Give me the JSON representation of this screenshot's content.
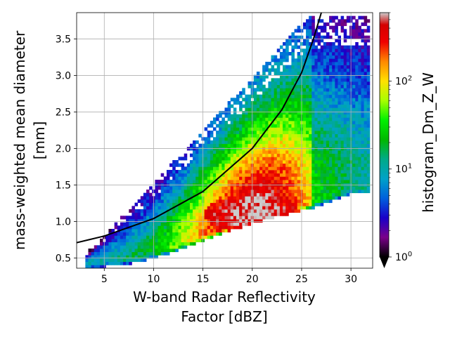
{
  "chart_data": {
    "type": "heatmap",
    "title": "",
    "xlabel": [
      "W-band Radar Reflectivity",
      "Factor [dBZ]"
    ],
    "ylabel": [
      "mass-weighted mean diameter",
      "[mm]"
    ],
    "xlim": [
      2.2,
      32.2
    ],
    "ylim": [
      0.36,
      3.86
    ],
    "x_ticks": [
      5,
      10,
      15,
      20,
      25,
      30
    ],
    "y_ticks": [
      0.5,
      1.0,
      1.5,
      2.0,
      2.5,
      3.0,
      3.5
    ],
    "x_tick_labels": [
      "5",
      "10",
      "15",
      "20",
      "25",
      "30"
    ],
    "y_tick_labels": [
      "0.5",
      "1.0",
      "1.5",
      "2.0",
      "2.5",
      "3.0",
      "3.5"
    ],
    "grid": true,
    "colorbar": {
      "label": "histogram_Dm_Z_W",
      "scale": "log",
      "range": [
        1,
        600
      ],
      "tick_labels": [
        {
          "base": "10",
          "exp": "0",
          "value": 1
        },
        {
          "base": "10",
          "exp": "1",
          "value": 10
        },
        {
          "base": "10",
          "exp": "2",
          "value": 100
        }
      ],
      "extend": "min",
      "colormap": "nipy_spectral"
    },
    "density_model": {
      "ridge": [
        [
          3,
          0.42
        ],
        [
          8,
          0.5
        ],
        [
          12,
          0.65
        ],
        [
          15,
          0.8
        ],
        [
          18,
          0.95
        ],
        [
          20,
          1.05
        ],
        [
          23,
          1.15
        ],
        [
          26,
          1.25
        ],
        [
          30,
          1.45
        ]
      ],
      "peak": {
        "x": 20,
        "y": 1.1,
        "count": 600
      }
    },
    "fit_curve": {
      "label": "",
      "color": "#000000",
      "points": [
        [
          2.2,
          0.71
        ],
        [
          5,
          0.8
        ],
        [
          10,
          1.04
        ],
        [
          15,
          1.41
        ],
        [
          20,
          2.0
        ],
        [
          23,
          2.53
        ],
        [
          25,
          3.04
        ],
        [
          26.2,
          3.5
        ],
        [
          27,
          3.86
        ]
      ]
    }
  }
}
